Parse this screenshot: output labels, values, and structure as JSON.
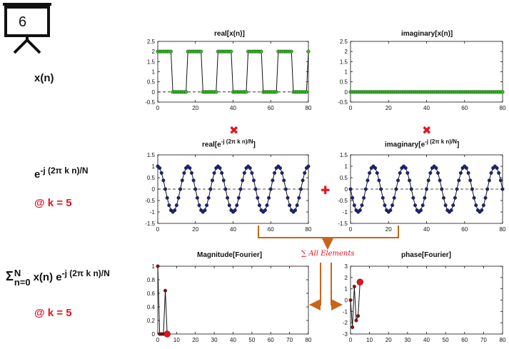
{
  "slide": {
    "number": "6"
  },
  "row_labels": {
    "signal": "x(n)",
    "kernel_base": "e",
    "kernel_exp": "-j (2π k n)/N",
    "k_note": "@ k = 5",
    "sum_sigma": "Σ",
    "sum_upper": "N",
    "sum_lower": "n=0",
    "sum_body": "x(n) e",
    "sum_exp": "-j (2π k n)/N",
    "sum_k_note": "@ k = 5"
  },
  "operators": {
    "multiply": "✖",
    "plus": "✚",
    "sum_label": "∑ All Elements"
  },
  "colors": {
    "green_marker": "#2fbf1f",
    "navy_marker": "#1a237e",
    "red_marker": "#e8121c",
    "dark_red_marker": "#8b1010",
    "orange_arrow": "#c8651b",
    "line": "#111111"
  },
  "chart_data": [
    {
      "id": "real-x",
      "type": "line",
      "title": "real[x(n)]",
      "xlim": [
        0,
        80
      ],
      "ylim": [
        -0.5,
        2.5
      ],
      "xticks": [
        0,
        20,
        40,
        60,
        80
      ],
      "yticks": [
        -0.5,
        0,
        0.5,
        1,
        1.5,
        2,
        2.5
      ],
      "ytick_labels": [
        "-0.5",
        "0",
        "0.5",
        "1",
        "1.5",
        "2",
        "2.5"
      ],
      "zero_line": true,
      "series": [
        {
          "generator": "square",
          "period": 16,
          "high": 2,
          "low": 0,
          "n_start": 0,
          "n_end": 80,
          "marker": "green"
        }
      ]
    },
    {
      "id": "imag-x",
      "type": "line",
      "title": "imaginary[x(n)]",
      "xlim": [
        0,
        80
      ],
      "ylim": [
        -0.5,
        2.5
      ],
      "xticks": [
        0,
        20,
        40,
        60,
        80
      ],
      "yticks": [
        -0.5,
        0,
        0.5,
        1,
        1.5,
        2,
        2.5
      ],
      "ytick_labels": [
        "-0.5",
        "0",
        "0.5",
        "1",
        "1.5",
        "2",
        "2.5"
      ],
      "zero_line": true,
      "series": [
        {
          "generator": "constant",
          "value": 0,
          "n_start": 0,
          "n_end": 80,
          "marker": "green"
        }
      ]
    },
    {
      "id": "real-kernel",
      "type": "line",
      "title": "real[e-j (2π k n)/N]",
      "xlim": [
        0,
        80
      ],
      "ylim": [
        -1.5,
        1.5
      ],
      "xticks": [
        0,
        20,
        40,
        60,
        80
      ],
      "yticks": [
        -1.5,
        -1,
        -0.5,
        0,
        0.5,
        1,
        1.5
      ],
      "ytick_labels": [
        "-1.5",
        "-1",
        "-0.5",
        "0",
        "0.5",
        "1",
        "1.5"
      ],
      "zero_line": true,
      "series": [
        {
          "generator": "cos",
          "k": 5,
          "N": 80,
          "n_start": 0,
          "n_end": 80,
          "marker": "navy"
        }
      ]
    },
    {
      "id": "imag-kernel",
      "type": "line",
      "title": "imaginary[e-j (2π k n)/N]",
      "xlim": [
        0,
        80
      ],
      "ylim": [
        -1.5,
        1.5
      ],
      "xticks": [
        0,
        20,
        40,
        60,
        80
      ],
      "yticks": [
        -1.5,
        -1,
        -0.5,
        0,
        0.5,
        1,
        1.5
      ],
      "ytick_labels": [
        "-1.5",
        "-1",
        "-0.5",
        "0",
        "0.5",
        "1",
        "1.5"
      ],
      "zero_line": true,
      "series": [
        {
          "generator": "neg_sin",
          "k": 5,
          "N": 80,
          "n_start": 0,
          "n_end": 80,
          "marker": "navy"
        }
      ]
    },
    {
      "id": "magnitude",
      "type": "line",
      "title": "Magnitude[Fourier]",
      "xlim": [
        0,
        80
      ],
      "ylim": [
        0,
        1
      ],
      "xticks": [
        0,
        10,
        20,
        30,
        40,
        50,
        60,
        70,
        80
      ],
      "yticks": [
        0,
        0.2,
        0.4,
        0.6,
        0.8,
        1
      ],
      "ytick_labels": [
        "0",
        "0.2",
        "0.4",
        "0.6",
        "0.8",
        "1"
      ],
      "zero_line": false,
      "series": [
        {
          "x": [
            0,
            1,
            2,
            3,
            4,
            5
          ],
          "y": [
            1,
            0,
            0,
            0,
            0.64,
            0
          ],
          "marker": "dark_red",
          "highlight_last": true
        }
      ]
    },
    {
      "id": "phase",
      "type": "line",
      "title": "phase[Fourier]",
      "xlim": [
        0,
        80
      ],
      "ylim": [
        -3,
        3
      ],
      "xticks": [
        0,
        10,
        20,
        30,
        40,
        50,
        60,
        70,
        80
      ],
      "yticks": [
        -3,
        -2,
        -1,
        0,
        1,
        2,
        3
      ],
      "ytick_labels": [
        "-3",
        "-2",
        "-1",
        "0",
        "1",
        "2",
        "3"
      ],
      "zero_line": false,
      "series": [
        {
          "x": [
            0,
            1,
            2,
            3,
            4,
            5
          ],
          "y": [
            0,
            -2.4,
            1.2,
            -1.8,
            -1.4,
            1.6
          ],
          "marker": "dark_red",
          "highlight_last": true
        }
      ]
    }
  ]
}
